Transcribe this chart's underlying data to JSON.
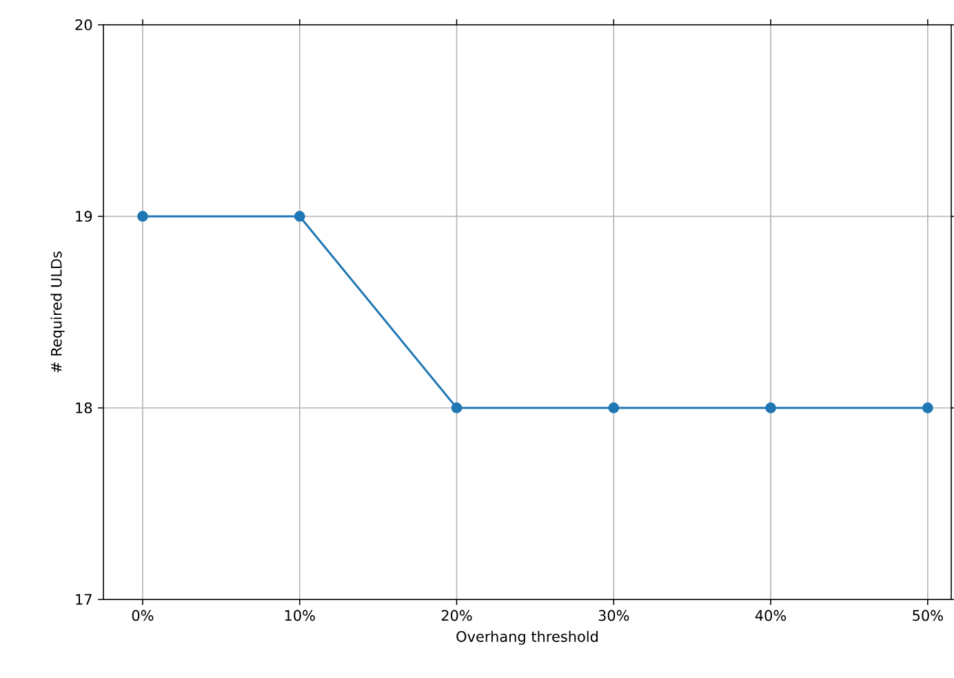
{
  "chart_data": {
    "type": "line",
    "xlabel": "Overhang threshold",
    "ylabel": "# Required ULDs",
    "x": [
      0,
      10,
      20,
      30,
      40,
      50
    ],
    "series": [
      {
        "color": "#1f77b4",
        "values": [
          19,
          19,
          18,
          18,
          18,
          18
        ]
      }
    ],
    "xlim": [
      -2.5,
      51.5
    ],
    "xticks": [
      {
        "value": 0,
        "label": "0%"
      },
      {
        "value": 10,
        "label": "10%"
      },
      {
        "value": 20,
        "label": "20%"
      },
      {
        "value": 30,
        "label": "30%"
      },
      {
        "value": 40,
        "label": "40%"
      },
      {
        "value": 50,
        "label": "50%"
      }
    ],
    "ylim": [
      17,
      20
    ],
    "yticks": [
      17,
      18,
      19,
      20
    ],
    "grid": true,
    "marker": "circle",
    "line_style": "solid"
  }
}
